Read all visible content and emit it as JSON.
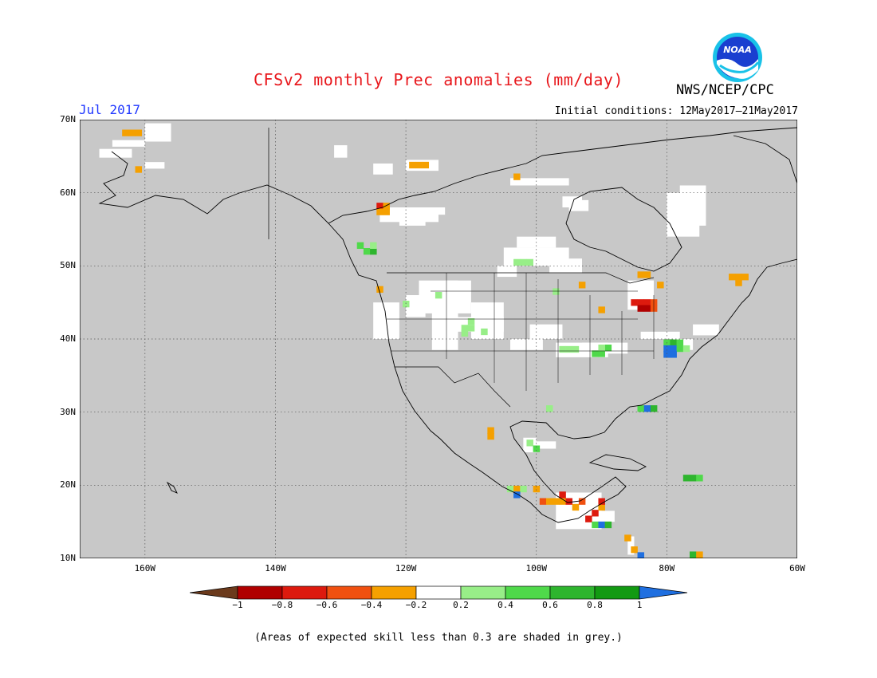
{
  "title": "CFSv2 monthly Prec anomalies (mm/day)",
  "agency": "NWS/NCEP/CPC",
  "logo_text": "NOAA",
  "month_label": "Jul 2017",
  "initial_conditions": "Initial conditions: 12May2017–21May2017",
  "footnote": "(Areas of expected skill less than 0.3 are shaded in grey.)",
  "lat_labels": [
    "70N",
    "60N",
    "50N",
    "40N",
    "30N",
    "20N",
    "10N"
  ],
  "lat_values": [
    70,
    60,
    50,
    40,
    30,
    20,
    10
  ],
  "lon_labels": [
    "160W",
    "140W",
    "120W",
    "100W",
    "80W",
    "60W"
  ],
  "lon_values": [
    -160,
    -140,
    -120,
    -100,
    -80,
    -60
  ],
  "extent": {
    "lon_min": -170,
    "lon_max": -60,
    "lat_min": 10,
    "lat_max": 70
  },
  "colorbar": {
    "labels": [
      "−1",
      "−0.8",
      "−0.6",
      "−0.4",
      "−0.2",
      "0.2",
      "0.4",
      "0.6",
      "0.8",
      "1"
    ],
    "colors": [
      "#6b3a1c",
      "#b00000",
      "#dd1a0e",
      "#f05010",
      "#f5a000",
      "#ffffff",
      "#98ee88",
      "#4fd94a",
      "#2eb52e",
      "#129a12",
      "#1f6fe0"
    ]
  },
  "colors": {
    "grey": "#c8c8c8",
    "white": "#ffffff",
    "border": "#000000"
  },
  "anomaly_cells": [
    {
      "lon": -163,
      "lat": 68.2,
      "v": -0.3
    },
    {
      "lon": -162,
      "lat": 68.2,
      "v": -0.3
    },
    {
      "lon": -161,
      "lat": 68.2,
      "v": -0.3
    },
    {
      "lon": -161,
      "lat": 63.2,
      "v": -0.3
    },
    {
      "lon": -119,
      "lat": 63.8,
      "v": -0.3
    },
    {
      "lon": -118,
      "lat": 63.8,
      "v": -0.3
    },
    {
      "lon": -117,
      "lat": 63.8,
      "v": -0.3
    },
    {
      "lon": -103,
      "lat": 62.2,
      "v": -0.3
    },
    {
      "lon": -124,
      "lat": 58.2,
      "v": -0.7
    },
    {
      "lon": -123,
      "lat": 57.4,
      "v": -0.3
    },
    {
      "lon": -124,
      "lat": 57.4,
      "v": -0.3
    },
    {
      "lon": -123,
      "lat": 58.2,
      "v": -0.3
    },
    {
      "lon": -127,
      "lat": 52.8,
      "v": 0.5
    },
    {
      "lon": -126,
      "lat": 52.0,
      "v": 0.5
    },
    {
      "lon": -125,
      "lat": 52.0,
      "v": 0.7
    },
    {
      "lon": -125,
      "lat": 52.8,
      "v": 0.3
    },
    {
      "lon": -102,
      "lat": 50.5,
      "v": 0.3
    },
    {
      "lon": -101,
      "lat": 50.5,
      "v": 0.3
    },
    {
      "lon": -103,
      "lat": 50.5,
      "v": 0.3
    },
    {
      "lon": -124,
      "lat": 46.8,
      "v": -0.3
    },
    {
      "lon": -120,
      "lat": 44.8,
      "v": 0.3
    },
    {
      "lon": -115,
      "lat": 46.0,
      "v": 0.3
    },
    {
      "lon": -111,
      "lat": 41.5,
      "v": 0.3
    },
    {
      "lon": -110,
      "lat": 41.5,
      "v": 0.3
    },
    {
      "lon": -111,
      "lat": 40.8,
      "v": 0.3
    },
    {
      "lon": -110,
      "lat": 42.4,
      "v": 0.3
    },
    {
      "lon": -108,
      "lat": 41.0,
      "v": 0.3
    },
    {
      "lon": -97,
      "lat": 46.5,
      "v": 0.3
    },
    {
      "lon": -93,
      "lat": 47.4,
      "v": -0.3
    },
    {
      "lon": -90,
      "lat": 44.0,
      "v": -0.3
    },
    {
      "lon": -84,
      "lat": 48.8,
      "v": -0.3
    },
    {
      "lon": -83,
      "lat": 48.8,
      "v": -0.3
    },
    {
      "lon": -81,
      "lat": 47.4,
      "v": -0.3
    },
    {
      "lon": -85,
      "lat": 45.0,
      "v": -0.7
    },
    {
      "lon": -84,
      "lat": 45.0,
      "v": -0.7
    },
    {
      "lon": -83,
      "lat": 45.0,
      "v": -0.8
    },
    {
      "lon": -84,
      "lat": 44.2,
      "v": -0.9
    },
    {
      "lon": -83,
      "lat": 44.2,
      "v": -0.9
    },
    {
      "lon": -82,
      "lat": 44.2,
      "v": -0.5
    },
    {
      "lon": -82,
      "lat": 45.0,
      "v": -0.5
    },
    {
      "lon": -96,
      "lat": 38.6,
      "v": 0.3
    },
    {
      "lon": -95,
      "lat": 38.6,
      "v": 0.3
    },
    {
      "lon": -94,
      "lat": 38.6,
      "v": 0.3
    },
    {
      "lon": -91,
      "lat": 38.0,
      "v": 0.5
    },
    {
      "lon": -90,
      "lat": 38.0,
      "v": 0.5
    },
    {
      "lon": -89,
      "lat": 38.8,
      "v": 0.5
    },
    {
      "lon": -90,
      "lat": 38.8,
      "v": 0.3
    },
    {
      "lon": -80,
      "lat": 39.5,
      "v": 0.5
    },
    {
      "lon": -79,
      "lat": 39.5,
      "v": 0.7
    },
    {
      "lon": -78,
      "lat": 39.5,
      "v": 0.5
    },
    {
      "lon": -80,
      "lat": 38.7,
      "v": 1.1
    },
    {
      "lon": -79,
      "lat": 38.7,
      "v": 1.1
    },
    {
      "lon": -78,
      "lat": 38.7,
      "v": 0.5
    },
    {
      "lon": -80,
      "lat": 37.9,
      "v": 1.1
    },
    {
      "lon": -79,
      "lat": 37.9,
      "v": 1.1
    },
    {
      "lon": -77,
      "lat": 38.7,
      "v": 0.3
    },
    {
      "lon": -84,
      "lat": 30.5,
      "v": 0.5
    },
    {
      "lon": -83,
      "lat": 30.5,
      "v": 1.1
    },
    {
      "lon": -82,
      "lat": 30.5,
      "v": 0.7
    },
    {
      "lon": -107,
      "lat": 27.5,
      "v": -0.3
    },
    {
      "lon": -107,
      "lat": 26.7,
      "v": -0.3
    },
    {
      "lon": -98,
      "lat": 30.5,
      "v": 0.3
    },
    {
      "lon": -101,
      "lat": 25.8,
      "v": 0.3
    },
    {
      "lon": -100,
      "lat": 25.0,
      "v": 0.5
    },
    {
      "lon": -104,
      "lat": 19.5,
      "v": 0.3
    },
    {
      "lon": -103,
      "lat": 19.5,
      "v": -0.3
    },
    {
      "lon": -102,
      "lat": 19.5,
      "v": 0.3
    },
    {
      "lon": -103,
      "lat": 18.7,
      "v": 1.1
    },
    {
      "lon": -100,
      "lat": 19.5,
      "v": -0.3
    },
    {
      "lon": -99,
      "lat": 17.8,
      "v": -0.5
    },
    {
      "lon": -98,
      "lat": 17.8,
      "v": -0.3
    },
    {
      "lon": -97,
      "lat": 17.8,
      "v": -0.3
    },
    {
      "lon": -96,
      "lat": 17.8,
      "v": -0.3
    },
    {
      "lon": -96,
      "lat": 18.7,
      "v": -0.7
    },
    {
      "lon": -95,
      "lat": 17.8,
      "v": -0.7
    },
    {
      "lon": -94,
      "lat": 17.0,
      "v": -0.3
    },
    {
      "lon": -93,
      "lat": 17.8,
      "v": -0.5
    },
    {
      "lon": -92,
      "lat": 15.4,
      "v": -0.8
    },
    {
      "lon": -91,
      "lat": 16.2,
      "v": -0.7
    },
    {
      "lon": -90,
      "lat": 17.0,
      "v": -0.3
    },
    {
      "lon": -90,
      "lat": 17.8,
      "v": -0.7
    },
    {
      "lon": -91,
      "lat": 14.6,
      "v": 0.5
    },
    {
      "lon": -90,
      "lat": 14.6,
      "v": 1.1
    },
    {
      "lon": -89,
      "lat": 14.6,
      "v": 0.7
    },
    {
      "lon": -86,
      "lat": 12.8,
      "v": -0.3
    },
    {
      "lon": -85,
      "lat": 11.2,
      "v": -0.3
    },
    {
      "lon": -84,
      "lat": 10.4,
      "v": 1.1
    },
    {
      "lon": -77,
      "lat": 21.0,
      "v": 0.7
    },
    {
      "lon": -76,
      "lat": 21.0,
      "v": 0.7
    },
    {
      "lon": -75,
      "lat": 21.0,
      "v": 0.5
    },
    {
      "lon": -76,
      "lat": 10.5,
      "v": 0.7
    },
    {
      "lon": -75,
      "lat": 10.5,
      "v": -0.3
    },
    {
      "lon": -70,
      "lat": 48.5,
      "v": -0.3
    },
    {
      "lon": -69,
      "lat": 48.5,
      "v": -0.3
    },
    {
      "lon": -68,
      "lat": 48.5,
      "v": -0.3
    },
    {
      "lon": -69,
      "lat": 47.7,
      "v": -0.3
    }
  ],
  "white_regions": [
    [
      -160,
      -156,
      67,
      69.5
    ],
    [
      -165,
      -160,
      66.3,
      67.2
    ],
    [
      -167,
      -162,
      64.8,
      66
    ],
    [
      -160,
      -157,
      63.3,
      64.2
    ],
    [
      -131,
      -129,
      64.8,
      66.5
    ],
    [
      -125,
      -122,
      62.5,
      64
    ],
    [
      -120,
      -115,
      63,
      64.5
    ],
    [
      -124,
      -115,
      56,
      58
    ],
    [
      -121,
      -117,
      55.5,
      57.5
    ],
    [
      -118,
      -114,
      57,
      58
    ],
    [
      -104,
      -95,
      61,
      62
    ],
    [
      -95,
      -92,
      57.5,
      59
    ],
    [
      -96,
      -93,
      58,
      59.5
    ],
    [
      -105,
      -95,
      50,
      52.5
    ],
    [
      -103,
      -97,
      52.5,
      54
    ],
    [
      -98,
      -93,
      49,
      51
    ],
    [
      -118,
      -110,
      43.5,
      48
    ],
    [
      -116,
      -112,
      38.5,
      44
    ],
    [
      -114,
      -105,
      41,
      43
    ],
    [
      -110,
      -105,
      40,
      45
    ],
    [
      -120,
      -117,
      43,
      46
    ],
    [
      -125,
      -121,
      40,
      45
    ],
    [
      -101,
      -96,
      40,
      42
    ],
    [
      -104,
      -99,
      38.5,
      40
    ],
    [
      -97,
      -89,
      37.5,
      39.5
    ],
    [
      -93,
      -86,
      38,
      39.5
    ],
    [
      -86,
      -82,
      44,
      48
    ],
    [
      -85,
      -82,
      45.5,
      48
    ],
    [
      -84,
      -78,
      40,
      41
    ],
    [
      -79,
      -76,
      38.5,
      40
    ],
    [
      -76,
      -72,
      40.5,
      42
    ],
    [
      -80,
      -75,
      54,
      60
    ],
    [
      -78,
      -74,
      55.5,
      61
    ],
    [
      -114,
      -112,
      46,
      48
    ],
    [
      -106,
      -103,
      48.5,
      50
    ],
    [
      -102,
      -100,
      24.5,
      26.5
    ],
    [
      -100,
      -97,
      25,
      26
    ],
    [
      -97,
      -90,
      14,
      19
    ],
    [
      -93,
      -88,
      15,
      16.5
    ],
    [
      -86,
      -85,
      10.5,
      13
    ]
  ]
}
